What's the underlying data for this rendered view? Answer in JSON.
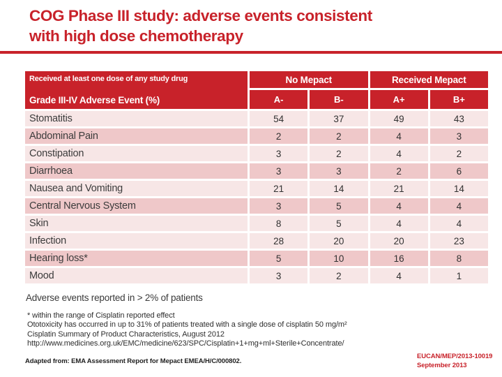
{
  "slide": {
    "title_line1": "COG Phase III study: adverse events consistent",
    "title_line2": "with high dose chemotherapy"
  },
  "colors": {
    "brand_red": "#C8222A",
    "row_light": "#F7E6E6",
    "row_dark": "#EFC8C9"
  },
  "table": {
    "header": {
      "left_top": "Received at least one dose of any study drug",
      "left_bottom": "Grade III-IV Adverse Event (%)",
      "group_no": "No Mepact",
      "group_received": "Received Mepact",
      "columns": [
        "A-",
        "B-",
        "A+",
        "B+"
      ]
    },
    "rows": [
      {
        "label": "Stomatitis",
        "values": [
          "54",
          "37",
          "49",
          "43"
        ],
        "shade": "light"
      },
      {
        "label": "Abdominal Pain",
        "values": [
          "2",
          "2",
          "4",
          "3"
        ],
        "shade": "dark"
      },
      {
        "label": "Constipation",
        "values": [
          "3",
          "2",
          "4",
          "2"
        ],
        "shade": "light"
      },
      {
        "label": "Diarrhoea",
        "values": [
          "3",
          "3",
          "2",
          "6"
        ],
        "shade": "dark"
      },
      {
        "label": "Nausea and Vomiting",
        "values": [
          "21",
          "14",
          "21",
          "14"
        ],
        "shade": "light"
      },
      {
        "label": "Central Nervous System",
        "values": [
          "3",
          "5",
          "4",
          "4"
        ],
        "shade": "dark"
      },
      {
        "label": "Skin",
        "values": [
          "8",
          "5",
          "4",
          "4"
        ],
        "shade": "light"
      },
      {
        "label": "Infection",
        "values": [
          "28",
          "20",
          "20",
          "23"
        ],
        "shade": "light"
      },
      {
        "label": "Hearing loss*",
        "values": [
          "5",
          "10",
          "16",
          "8"
        ],
        "shade": "dark"
      },
      {
        "label": "Mood",
        "values": [
          "3",
          "2",
          "4",
          "1"
        ],
        "shade": "light"
      }
    ]
  },
  "notes": {
    "reported": "Adverse events reported in > 2% of patients",
    "footnote_lines": [
      "* within the range of Cisplatin reported effect",
      "Ototoxicity has occurred in up to 31% of patients treated with a single dose of cisplatin 50 mg/m²",
      "Cisplatin Summary of Product Characteristics, August 2012",
      "http://www.medicines.org.uk/EMC/medicine/623/SPC/Cisplatin+1+mg+ml+Sterile+Concentrate/"
    ],
    "adapted": "Adapted from: EMA Assessment Report for Mepact EMEA/H/C/000802.",
    "ref_code": "EUCAN/MEP/2013-10019",
    "ref_date": "September 2013"
  }
}
